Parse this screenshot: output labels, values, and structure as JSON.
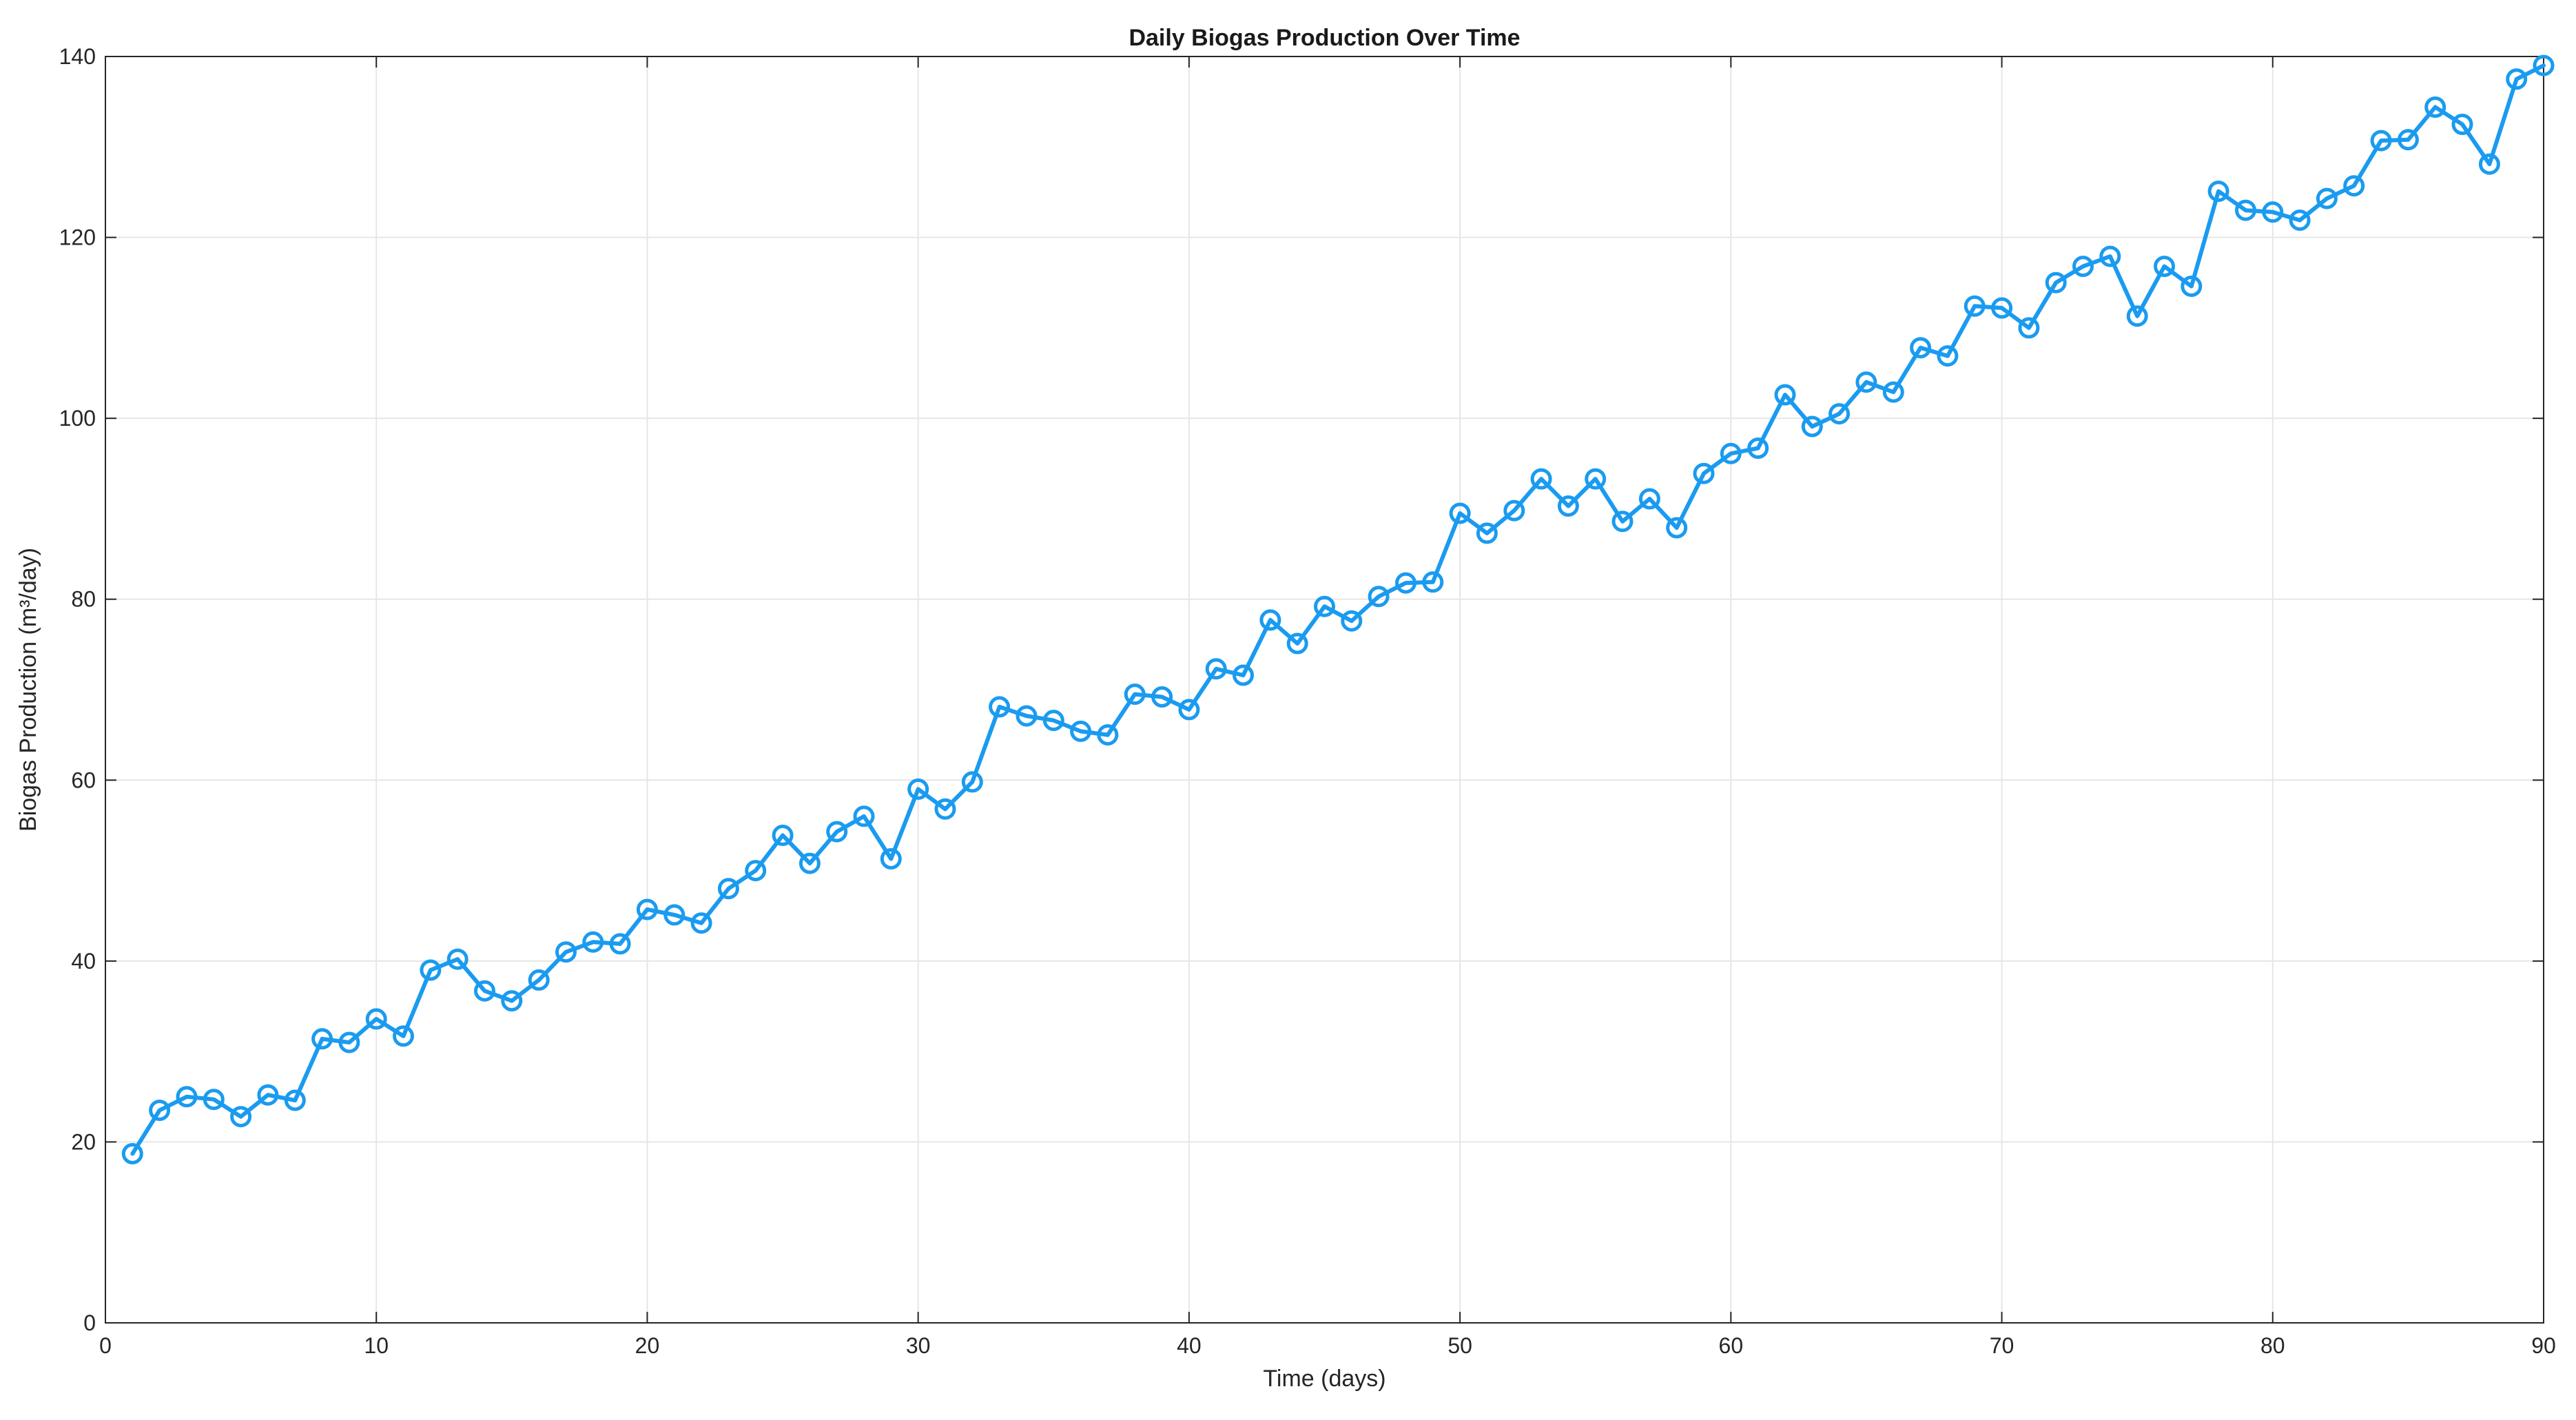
{
  "chart_data": {
    "type": "line",
    "title": "Daily Biogas Production Over Time",
    "xlabel": "Time (days)",
    "ylabel": "Biogas Production (m³/day)",
    "xlim": [
      0,
      90
    ],
    "ylim": [
      0,
      140
    ],
    "xticks": [
      0,
      10,
      20,
      30,
      40,
      50,
      60,
      70,
      80,
      90
    ],
    "yticks": [
      0,
      20,
      40,
      60,
      80,
      100,
      120,
      140
    ],
    "grid": true,
    "legend": "none",
    "marker": "circle",
    "color": "#1a9bf0",
    "series": [
      {
        "x": [
          1,
          2,
          3,
          4,
          5,
          6,
          7,
          8,
          9,
          10,
          11,
          12,
          13,
          14,
          15,
          16,
          17,
          18,
          19,
          20,
          21,
          22,
          23,
          24,
          25,
          26,
          27,
          28,
          29,
          30,
          31,
          32,
          33,
          34,
          35,
          36,
          37,
          38,
          39,
          40,
          41,
          42,
          43,
          44,
          45,
          46,
          47,
          48,
          49,
          50,
          51,
          52,
          53,
          54,
          55,
          56,
          57,
          58,
          59,
          60,
          61,
          62,
          63,
          64,
          65,
          66,
          67,
          68,
          69,
          70,
          71,
          72,
          73,
          74,
          75,
          76,
          77,
          78,
          79,
          80,
          81,
          82,
          83,
          84,
          85,
          86,
          87,
          88,
          89,
          90
        ],
        "values": [
          18.7,
          23.5,
          25.0,
          24.7,
          22.8,
          25.2,
          24.6,
          31.4,
          31.0,
          33.6,
          31.7,
          39.0,
          40.2,
          36.7,
          35.6,
          37.9,
          41.0,
          42.1,
          41.9,
          45.7,
          45.1,
          44.2,
          48.0,
          50.0,
          53.9,
          50.8,
          54.3,
          56.0,
          51.3,
          59.0,
          56.8,
          59.8,
          68.1,
          67.1,
          66.6,
          65.4,
          65.0,
          69.5,
          69.2,
          67.8,
          72.3,
          71.6,
          77.7,
          75.1,
          79.2,
          77.6,
          80.3,
          81.8,
          81.9,
          89.5,
          87.3,
          89.8,
          93.3,
          90.3,
          93.3,
          88.6,
          91.1,
          87.9,
          93.9,
          96.1,
          96.7,
          102.6,
          99.1,
          100.5,
          104.0,
          102.9,
          107.8,
          106.9,
          112.4,
          112.2,
          110.0,
          115.0,
          116.8,
          117.9,
          111.3,
          116.8,
          114.6,
          125.1,
          123.0,
          122.8,
          121.9,
          124.3,
          125.7,
          130.7,
          130.8,
          134.4,
          132.5,
          128.1,
          137.5,
          139.0
        ]
      }
    ]
  }
}
